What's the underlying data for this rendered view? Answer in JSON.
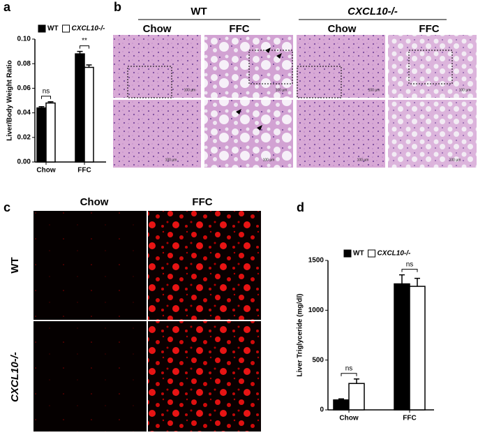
{
  "chart_data": [
    {
      "type": "bar",
      "panel_label": "a",
      "ylabel": "Liver/Body Weight Ratio",
      "categories": [
        "Chow",
        "FFC"
      ],
      "series": [
        {
          "name": "WT",
          "color": "#000000",
          "values": [
            0.044,
            0.088
          ],
          "errors": [
            0.001,
            0.002
          ]
        },
        {
          "name": "CXCL10-/-",
          "color": "#ffffff",
          "values": [
            0.048,
            0.077
          ],
          "errors": [
            0.001,
            0.002
          ]
        }
      ],
      "annotations": [
        "ns",
        "**"
      ],
      "ylim": [
        0,
        0.1
      ],
      "yticks": [
        {
          "value": 0,
          "label": "0.00"
        },
        {
          "value": 0.02,
          "label": "0.02"
        },
        {
          "value": 0.04,
          "label": "0.04"
        },
        {
          "value": 0.06,
          "label": "0.06"
        },
        {
          "value": 0.08,
          "label": "0.08"
        },
        {
          "value": 0.1,
          "label": "0.10"
        }
      ]
    },
    {
      "type": "bar",
      "panel_label": "d",
      "ylabel": "Liver Triglyceride (mg/dl)",
      "categories": [
        "Chow",
        "FFC"
      ],
      "series": [
        {
          "name": "WT",
          "color": "#000000",
          "values": [
            100,
            1265
          ],
          "errors": [
            10,
            90
          ]
        },
        {
          "name": "CXCL10-/-",
          "color": "#ffffff",
          "values": [
            265,
            1240
          ],
          "errors": [
            45,
            80
          ]
        }
      ],
      "annotations": [
        "ns",
        "ns"
      ],
      "ylim": [
        0,
        1500
      ],
      "yticks": [
        0,
        500,
        1000,
        1500
      ]
    }
  ],
  "panel_b": {
    "label": "b",
    "groups": [
      {
        "name": "WT",
        "columns": [
          "Chow",
          "FFC"
        ]
      },
      {
        "name": "CXCL10-/-",
        "columns": [
          "Chow",
          "FFC"
        ]
      }
    ],
    "scale_bar": "100 µm"
  },
  "panel_c": {
    "label": "c",
    "columns": [
      "Chow",
      "FFC"
    ],
    "rows": [
      "WT",
      "CXCL10-/-"
    ]
  }
}
